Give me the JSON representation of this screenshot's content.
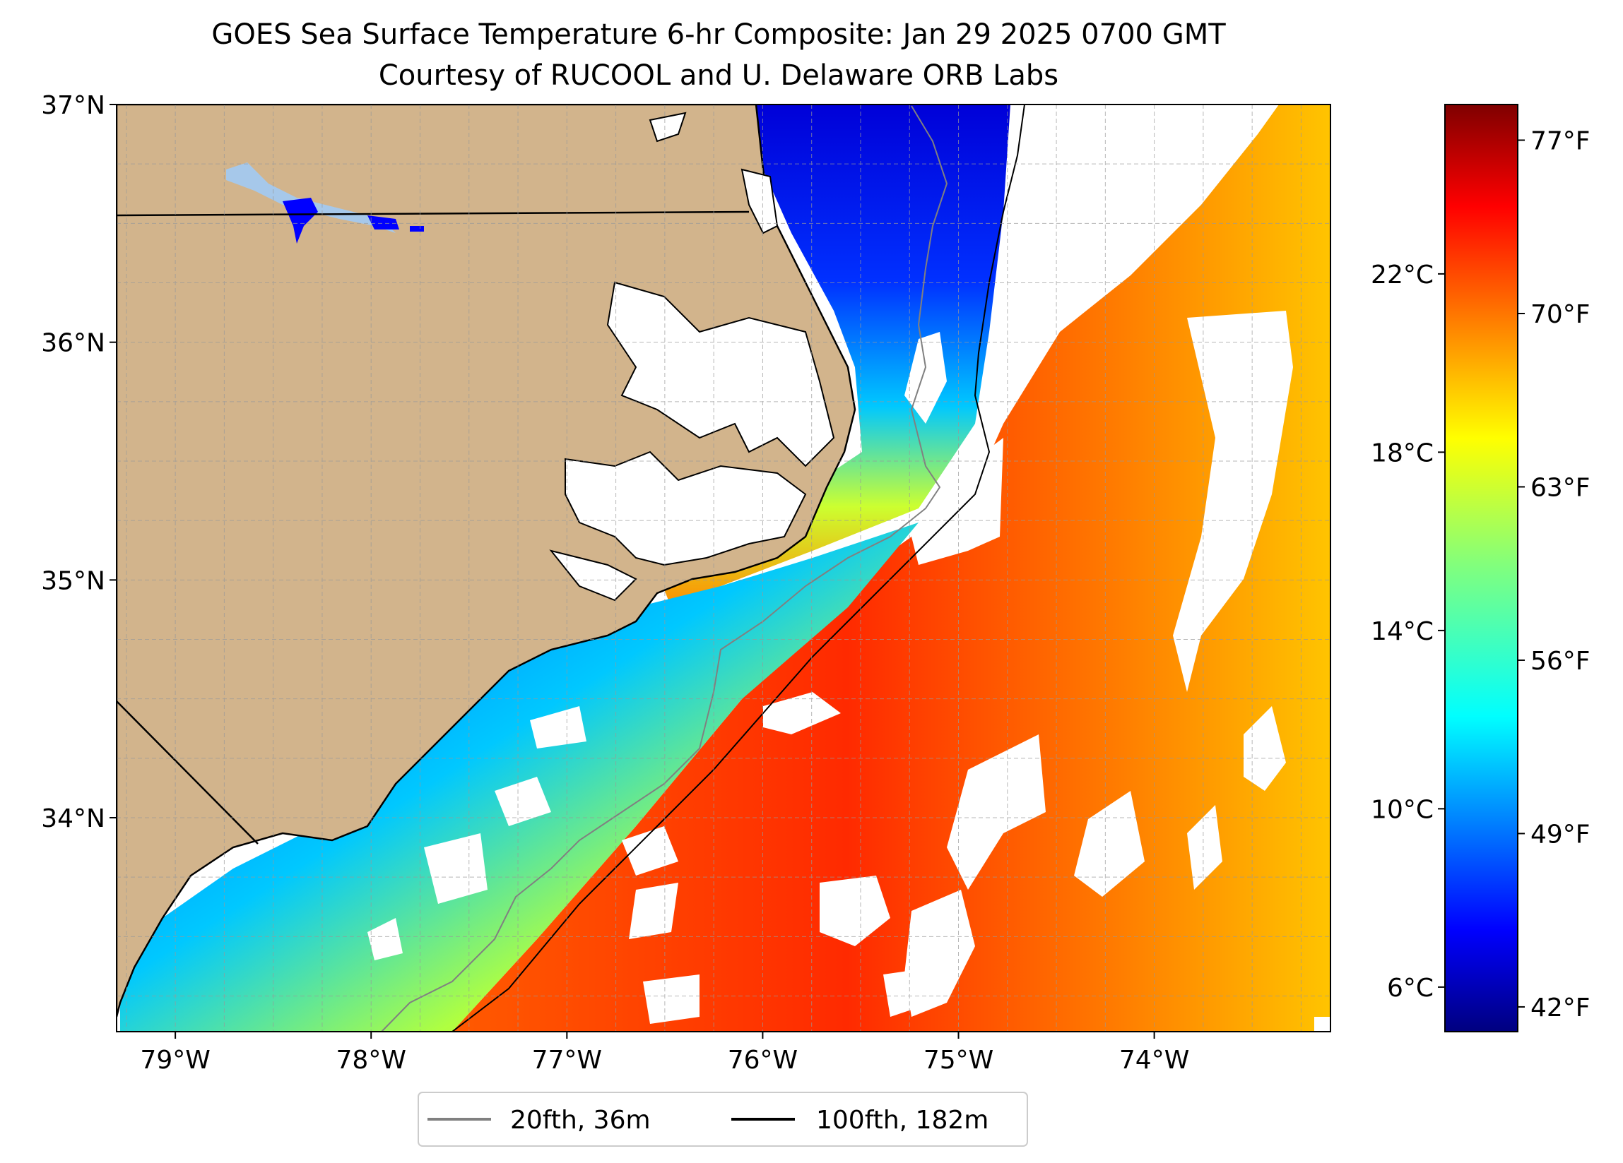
{
  "title": {
    "line1": "GOES Sea Surface Temperature 6-hr Composite: Jan 29 2025 0700 GMT",
    "line2": "Courtesy of RUCOOL and U. Delaware ORB Labs"
  },
  "map": {
    "lon_range": [
      -79.3,
      -73.1
    ],
    "lat_range": [
      33.1,
      37.0
    ],
    "lat_ticks": [
      {
        "value": 37,
        "label": "37°N"
      },
      {
        "value": 36,
        "label": "36°N"
      },
      {
        "value": 35,
        "label": "35°N"
      },
      {
        "value": 34,
        "label": "34°N"
      }
    ],
    "lon_ticks": [
      {
        "value": -79,
        "label": "79°W"
      },
      {
        "value": -78,
        "label": "78°W"
      },
      {
        "value": -77,
        "label": "77°W"
      },
      {
        "value": -76,
        "label": "76°W"
      },
      {
        "value": -75,
        "label": "75°W"
      },
      {
        "value": -74,
        "label": "74°W"
      }
    ],
    "grid": true,
    "land_color": "#d2b48c"
  },
  "colorbar": {
    "colormap": "jet",
    "range_c": [
      5.0,
      25.8
    ],
    "celsius_ticks": [
      {
        "value": 6,
        "label": "6°C"
      },
      {
        "value": 10,
        "label": "10°C"
      },
      {
        "value": 14,
        "label": "14°C"
      },
      {
        "value": 18,
        "label": "18°C"
      },
      {
        "value": 22,
        "label": "22°C"
      }
    ],
    "fahrenheit_ticks": [
      {
        "value": 42,
        "label": "42°F"
      },
      {
        "value": 49,
        "label": "49°F"
      },
      {
        "value": 56,
        "label": "56°F"
      },
      {
        "value": 63,
        "label": "63°F"
      },
      {
        "value": 70,
        "label": "70°F"
      },
      {
        "value": 77,
        "label": "77°F"
      }
    ]
  },
  "legend": {
    "placement": "bottom-center",
    "items": [
      {
        "label": "20fth, 36m",
        "color": "#808080"
      },
      {
        "label": "100fth, 182m",
        "color": "#000000"
      }
    ]
  }
}
